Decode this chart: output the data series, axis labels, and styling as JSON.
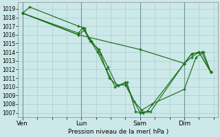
{
  "xlabel": "Pression niveau de la mer( hPa )",
  "bg_color": "#cce8e8",
  "grid_color": "#aacece",
  "line_color": "#1a6e1a",
  "ylim": [
    1006.5,
    1019.8
  ],
  "yticks": [
    1007,
    1008,
    1009,
    1010,
    1011,
    1012,
    1013,
    1014,
    1015,
    1016,
    1017,
    1018,
    1019
  ],
  "xtick_labels": [
    "Ven",
    "Lun",
    "Sam",
    "Dim"
  ],
  "xtick_positions": [
    0.0,
    4.0,
    8.0,
    11.0
  ],
  "xlim": [
    -0.3,
    13.3
  ],
  "vlines": [
    0.0,
    4.0,
    8.0,
    11.0
  ],
  "series": [
    {
      "x": [
        0.0,
        0.5,
        3.8,
        4.2,
        4.6,
        5.2,
        5.8,
        6.4,
        7.0,
        8.0,
        8.5,
        11.0,
        11.5,
        12.2,
        12.8
      ],
      "y": [
        1018.5,
        1019.2,
        1017.0,
        1016.8,
        1015.3,
        1014.3,
        1012.3,
        1010.2,
        1010.2,
        1007.0,
        1007.2,
        1012.7,
        1013.8,
        1014.0,
        1011.7
      ]
    },
    {
      "x": [
        0.0,
        3.8,
        4.1,
        4.5,
        5.1,
        5.7,
        6.3,
        7.0,
        7.6,
        8.1,
        8.8,
        11.0,
        11.8,
        12.3,
        12.8
      ],
      "y": [
        1018.5,
        1016.2,
        1016.8,
        1015.6,
        1014.0,
        1012.0,
        1010.0,
        1010.5,
        1008.3,
        1007.3,
        1008.0,
        1009.7,
        1013.4,
        1014.0,
        1011.7
      ]
    },
    {
      "x": [
        0.0,
        3.8,
        4.2,
        4.7,
        5.3,
        5.9,
        6.5,
        7.1,
        7.7,
        8.2,
        8.7,
        11.0,
        11.5,
        12.0,
        12.8
      ],
      "y": [
        1018.5,
        1016.0,
        1016.5,
        1015.3,
        1013.8,
        1011.0,
        1010.1,
        1010.5,
        1007.1,
        1007.0,
        1007.1,
        1012.7,
        1013.8,
        1014.0,
        1011.7
      ]
    },
    {
      "x": [
        0.0,
        3.8,
        8.0,
        11.0,
        11.5,
        12.0,
        12.8
      ],
      "y": [
        1018.5,
        1016.0,
        1014.3,
        1012.7,
        1013.4,
        1014.0,
        1011.7
      ]
    }
  ]
}
